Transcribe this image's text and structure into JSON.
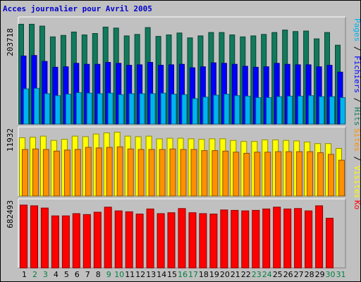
{
  "title": "Acces journalier pour Avril 2005",
  "colors": {
    "hits": "#117a5c",
    "fichiers": "#0000ff",
    "pages": "#00b4f0",
    "visites": "#ffff00",
    "sites": "#ff9000",
    "ko": "#ff0000",
    "weekday_label": "#000000",
    "weekend_label": "#008040",
    "title": "#0000cc",
    "background": "#c0c0c0"
  },
  "chart_data": [
    {
      "type": "bar",
      "title": "Hits / Fichiers / Pages",
      "ymax_label": "203718",
      "ylim": [
        0,
        213000
      ],
      "categories": [
        "1",
        "2",
        "3",
        "4",
        "5",
        "6",
        "7",
        "8",
        "9",
        "10",
        "11",
        "12",
        "13",
        "14",
        "15",
        "16",
        "17",
        "18",
        "19",
        "20",
        "21",
        "22",
        "23",
        "24",
        "25",
        "26",
        "27",
        "28",
        "29",
        "30",
        "31"
      ],
      "legend": [
        {
          "text": "Pages",
          "color": "#00b4f0"
        },
        {
          "text": " / ",
          "color": "#000000"
        },
        {
          "text": "Fichiers",
          "color": "#0000ff"
        },
        {
          "text": " / ",
          "color": "#000000"
        },
        {
          "text": "Hits",
          "color": "#117a5c"
        }
      ],
      "series": [
        {
          "name": "Hits",
          "values": [
            203718,
            203718,
            200000,
            178000,
            181000,
            188000,
            182000,
            185000,
            198000,
            196000,
            180000,
            183000,
            197000,
            179000,
            182000,
            186000,
            176000,
            180000,
            187000,
            187000,
            182000,
            178000,
            180000,
            183000,
            187000,
            192000,
            189000,
            190000,
            174000,
            187000,
            161000
          ]
        },
        {
          "name": "Fichiers",
          "values": [
            139000,
            140000,
            128000,
            116000,
            117000,
            124000,
            122000,
            122000,
            126000,
            124000,
            120000,
            121000,
            126000,
            120000,
            121000,
            122000,
            115000,
            117000,
            125000,
            124000,
            122000,
            118000,
            116000,
            117000,
            124000,
            122000,
            121000,
            121000,
            117000,
            120000,
            106000
          ]
        },
        {
          "name": "Pages",
          "values": [
            72000,
            73000,
            62000,
            58000,
            61000,
            64000,
            63000,
            62000,
            63000,
            60000,
            62000,
            62000,
            62000,
            63000,
            61000,
            60000,
            52000,
            55000,
            59000,
            61000,
            58000,
            57000,
            54000,
            54000,
            56000,
            57000,
            57000,
            58000,
            56000,
            56000,
            54000
          ]
        }
      ]
    },
    {
      "type": "bar",
      "title": "Sites / Visites",
      "ymax_label": "11932",
      "ylim": [
        0,
        12400
      ],
      "categories": [
        "1",
        "2",
        "3",
        "4",
        "5",
        "6",
        "7",
        "8",
        "9",
        "10",
        "11",
        "12",
        "13",
        "14",
        "15",
        "16",
        "17",
        "18",
        "19",
        "20",
        "21",
        "22",
        "23",
        "24",
        "25",
        "26",
        "27",
        "28",
        "29",
        "30",
        "31"
      ],
      "legend": [
        {
          "text": "Sites",
          "color": "#ff9000"
        },
        {
          "text": " / ",
          "color": "#000000"
        },
        {
          "text": "Visites",
          "color": "#ffff00"
        }
      ],
      "series": [
        {
          "name": "Visites",
          "values": [
            10900,
            11000,
            11200,
            10400,
            10600,
            11200,
            11100,
            11600,
            11800,
            11932,
            11200,
            11100,
            11200,
            10700,
            10800,
            10800,
            10700,
            10600,
            10700,
            10700,
            10400,
            10200,
            10200,
            10500,
            10500,
            10400,
            10300,
            10100,
            9800,
            9800,
            8900
          ]
        },
        {
          "name": "Sites",
          "values": [
            8700,
            8800,
            8700,
            8400,
            8600,
            8700,
            9100,
            9000,
            9100,
            9200,
            8800,
            8700,
            8700,
            8700,
            8800,
            8700,
            8700,
            8500,
            8500,
            8400,
            8200,
            8000,
            8200,
            8200,
            8300,
            8300,
            8300,
            8300,
            8100,
            7800,
            6700
          ]
        }
      ]
    },
    {
      "type": "bar",
      "title": "Ko",
      "ymax_label": "682493",
      "ylim": [
        0,
        720000
      ],
      "categories": [
        "1",
        "2",
        "3",
        "4",
        "5",
        "6",
        "7",
        "8",
        "9",
        "10",
        "11",
        "12",
        "13",
        "14",
        "15",
        "16",
        "17",
        "18",
        "19",
        "20",
        "21",
        "22",
        "23",
        "24",
        "25",
        "26",
        "27",
        "28",
        "29",
        "30",
        "31"
      ],
      "legend": [
        {
          "text": "Ko",
          "color": "#ff0000"
        }
      ],
      "series": [
        {
          "name": "Ko",
          "values": [
            682493,
            675000,
            650000,
            565000,
            565000,
            590000,
            580000,
            605000,
            660000,
            620000,
            610000,
            585000,
            640000,
            590000,
            600000,
            645000,
            600000,
            590000,
            585000,
            630000,
            625000,
            620000,
            625000,
            640000,
            660000,
            640000,
            645000,
            620000,
            675000,
            540000,
            0
          ]
        }
      ]
    }
  ],
  "day_labels": [
    {
      "label": "1",
      "weekend": false
    },
    {
      "label": "2",
      "weekend": true
    },
    {
      "label": "3",
      "weekend": true
    },
    {
      "label": "4",
      "weekend": false
    },
    {
      "label": "5",
      "weekend": false
    },
    {
      "label": "6",
      "weekend": false
    },
    {
      "label": "7",
      "weekend": false
    },
    {
      "label": "8",
      "weekend": false
    },
    {
      "label": "9",
      "weekend": true
    },
    {
      "label": "10",
      "weekend": true
    },
    {
      "label": "11",
      "weekend": false
    },
    {
      "label": "12",
      "weekend": false
    },
    {
      "label": "13",
      "weekend": false
    },
    {
      "label": "14",
      "weekend": false
    },
    {
      "label": "15",
      "weekend": false
    },
    {
      "label": "16",
      "weekend": true
    },
    {
      "label": "17",
      "weekend": true
    },
    {
      "label": "18",
      "weekend": false
    },
    {
      "label": "19",
      "weekend": false
    },
    {
      "label": "20",
      "weekend": false
    },
    {
      "label": "21",
      "weekend": false
    },
    {
      "label": "22",
      "weekend": false
    },
    {
      "label": "23",
      "weekend": true
    },
    {
      "label": "24",
      "weekend": true
    },
    {
      "label": "25",
      "weekend": false
    },
    {
      "label": "26",
      "weekend": false
    },
    {
      "label": "27",
      "weekend": false
    },
    {
      "label": "28",
      "weekend": false
    },
    {
      "label": "29",
      "weekend": false
    },
    {
      "label": "30",
      "weekend": true
    },
    {
      "label": "31",
      "weekend": true
    }
  ]
}
